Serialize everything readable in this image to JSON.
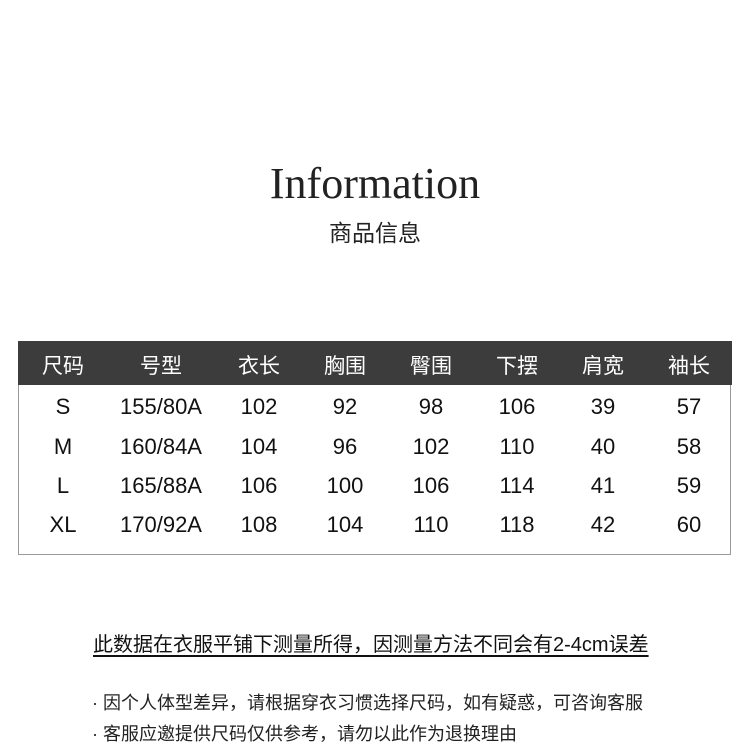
{
  "header": {
    "title": "Information",
    "subtitle": "商品信息"
  },
  "table": {
    "columns": [
      "尺码",
      "号型",
      "衣长",
      "胸围",
      "臀围",
      "下摆",
      "肩宽",
      "袖长"
    ],
    "rows": [
      [
        "S",
        "155/80A",
        "102",
        "92",
        "98",
        "106",
        "39",
        "57"
      ],
      [
        "M",
        "160/84A",
        "104",
        "96",
        "102",
        "110",
        "40",
        "58"
      ],
      [
        "L",
        "165/88A",
        "106",
        "100",
        "106",
        "114",
        "41",
        "59"
      ],
      [
        "XL",
        "170/92A",
        "108",
        "104",
        "110",
        "118",
        "42",
        "60"
      ]
    ]
  },
  "note": "此数据在衣服平铺下测量所得，因测量方法不同会有2-4cm误差",
  "bullets": [
    "· 因个人体型差异，请根据穿衣习惯选择尺码，如有疑惑，可咨询客服",
    "· 客服应邀提供尺码仅供参考，请勿以此作为退换理由"
  ],
  "colors": {
    "header_bg": "#3c3c3c"
  }
}
